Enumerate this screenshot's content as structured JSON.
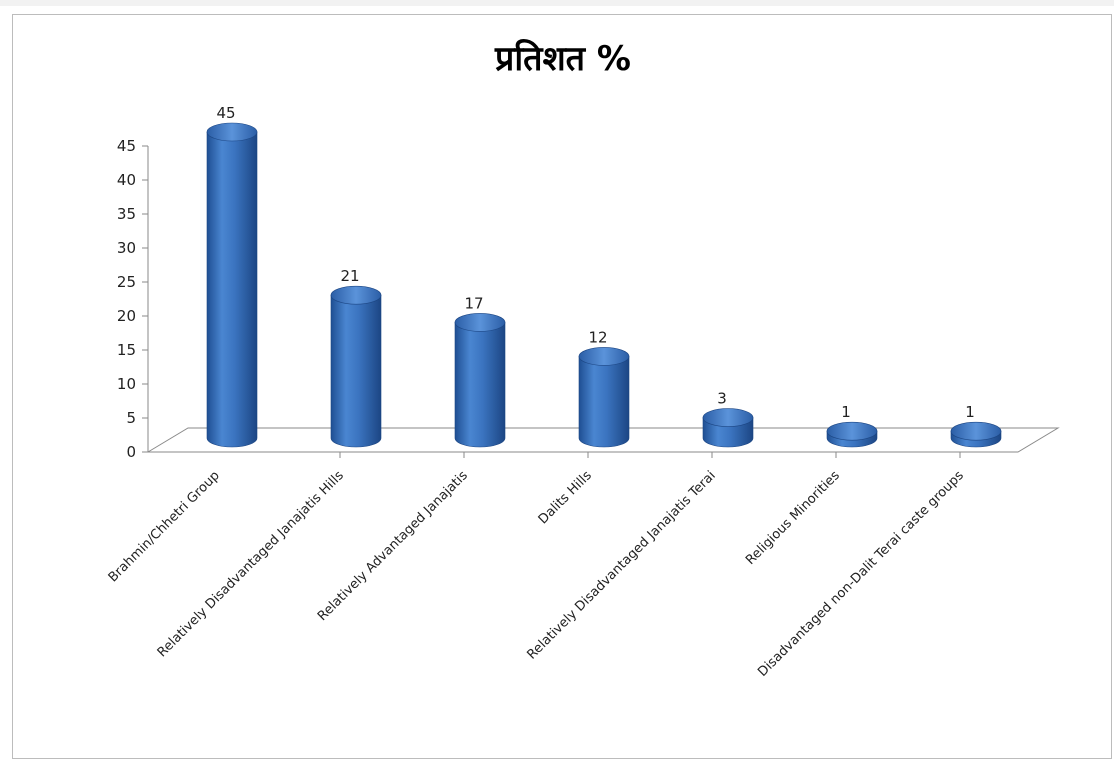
{
  "chart_data": {
    "type": "bar",
    "title": "प्रतिशत %",
    "categories": [
      "Brahmin/Chhetri Group",
      "Relatively Disadvantaged Janajatis Hills",
      "Relatively Advantaged Janajatis",
      "Dalits Hills",
      "Relatively Disadvantaged Janajatis Terai",
      "Religious Minorities",
      "Disadvantaged non-Dalit Terai caste groups"
    ],
    "values": [
      45,
      21,
      17,
      12,
      3,
      1,
      1
    ],
    "ylim": [
      0,
      45
    ],
    "yticks": [
      0,
      5,
      10,
      15,
      20,
      25,
      30,
      35,
      40,
      45
    ],
    "xlabel": "",
    "ylabel": "",
    "grid": false,
    "legend": "none",
    "bar_color": "#3a6fb8"
  }
}
